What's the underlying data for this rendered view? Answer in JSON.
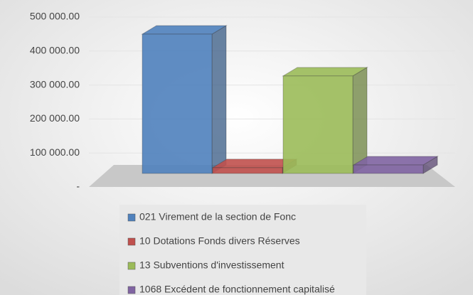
{
  "chart_data": {
    "type": "bar3d",
    "ylim": [
      0,
      500000
    ],
    "yticks": [
      {
        "value": 0,
        "label": "-"
      },
      {
        "value": 100000,
        "label": "100 000.00"
      },
      {
        "value": 200000,
        "label": "200 000.00"
      },
      {
        "value": 300000,
        "label": "300 000.00"
      },
      {
        "value": 400000,
        "label": "400 000.00"
      },
      {
        "value": 500000,
        "label": "500 000.00"
      }
    ],
    "grid": true,
    "legend": "bottom",
    "series": [
      {
        "name": "021 Virement de la section de Fonc",
        "color": "#4f81bd",
        "values": [
          410000
        ]
      },
      {
        "name": "10 Dotations Fonds divers Réserves",
        "color": "#c0504d",
        "values": [
          17000
        ]
      },
      {
        "name": "13 Subventions d'investissement",
        "color": "#9bbb59",
        "values": [
          287000
        ]
      },
      {
        "name": "1068 Excédent de fonctionnement capitalisé",
        "color": "#8064a2",
        "values": [
          25000
        ]
      }
    ]
  }
}
